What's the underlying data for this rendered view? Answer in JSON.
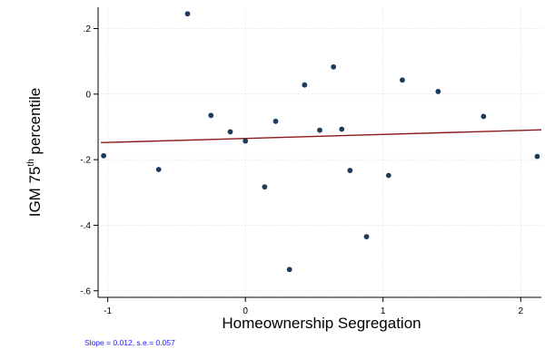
{
  "chart_data": {
    "type": "scatter",
    "title": "",
    "xlabel": "Homeownership Segregation",
    "ylabel": "IGM 75",
    "ylabel_superscript": "th",
    "ylabel_suffix": " percentile",
    "xlim": [
      -1.07,
      2.15
    ],
    "ylim": [
      -0.62,
      0.265
    ],
    "xticks": [
      -1,
      0,
      1,
      2
    ],
    "xtick_labels": [
      "-1",
      "0",
      "1",
      "2"
    ],
    "yticks": [
      0.2,
      0,
      -0.2,
      -0.4,
      -0.6
    ],
    "ytick_labels": [
      ".2",
      "0",
      "-.2",
      "-.4",
      "-.6"
    ],
    "grid": true,
    "point_color": "#1f3b5c",
    "fit_color": "#8b1a1a",
    "note_color": "#1a1aff",
    "points": [
      {
        "x": -1.03,
        "y": -0.188
      },
      {
        "x": -0.63,
        "y": -0.23
      },
      {
        "x": -0.42,
        "y": 0.245
      },
      {
        "x": -0.25,
        "y": -0.065
      },
      {
        "x": -0.11,
        "y": -0.115
      },
      {
        "x": 0.0,
        "y": -0.143
      },
      {
        "x": 0.14,
        "y": -0.283
      },
      {
        "x": 0.22,
        "y": -0.083
      },
      {
        "x": 0.32,
        "y": -0.535
      },
      {
        "x": 0.43,
        "y": 0.028
      },
      {
        "x": 0.54,
        "y": -0.11
      },
      {
        "x": 0.64,
        "y": 0.083
      },
      {
        "x": 0.7,
        "y": -0.107
      },
      {
        "x": 0.76,
        "y": -0.233
      },
      {
        "x": 0.88,
        "y": -0.435
      },
      {
        "x": 1.04,
        "y": -0.248
      },
      {
        "x": 1.14,
        "y": 0.043
      },
      {
        "x": 1.4,
        "y": 0.008
      },
      {
        "x": 1.73,
        "y": -0.068
      },
      {
        "x": 2.12,
        "y": -0.19
      }
    ],
    "fit_line": {
      "x": [
        -1.05,
        2.15
      ],
      "y": [
        -0.148,
        -0.109
      ]
    },
    "note": "Slope =  0.012, s.e.= 0.057"
  }
}
